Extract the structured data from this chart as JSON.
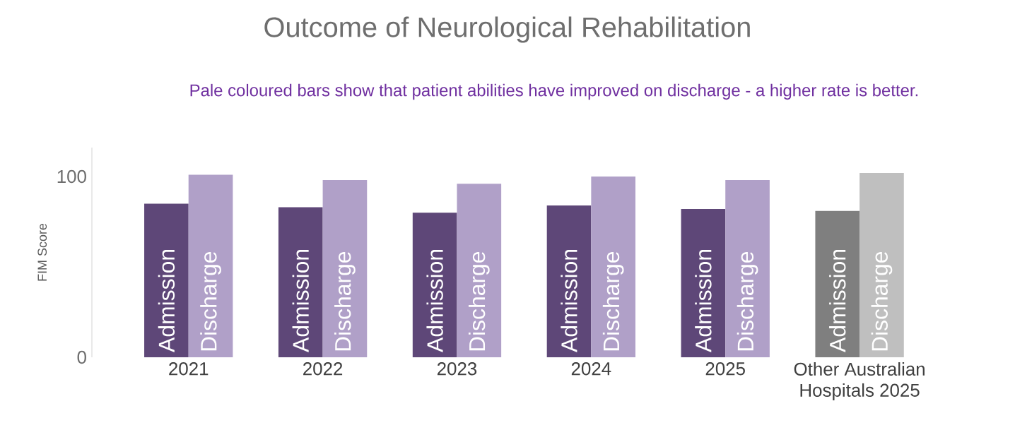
{
  "chart_data": {
    "type": "bar",
    "title": "Outcome of Neurological Rehabilitation",
    "annotations": [
      "Pale coloured bars show that patient abilities have improved on discharge - a higher rate is better."
    ],
    "ylabel": "FIM Score",
    "categories": [
      "2021",
      "2022",
      "2023",
      "2024",
      "2025",
      "Other Australian Hospitals 2025"
    ],
    "series": [
      {
        "name": "Admission",
        "colors": [
          "#5e4778",
          "#5e4778",
          "#5e4778",
          "#5e4778",
          "#5e4778",
          "#7f7f7f"
        ],
        "values": [
          85,
          83,
          80,
          84,
          82,
          81
        ]
      },
      {
        "name": "Discharge",
        "colors": [
          "#b0a0c8",
          "#b0a0c8",
          "#b0a0c8",
          "#b0a0c8",
          "#b0a0c8",
          "#bfbfbf"
        ],
        "values": [
          101,
          98,
          96,
          100,
          98,
          102
        ]
      }
    ],
    "ylim": [
      0,
      116
    ],
    "yticks": [
      0,
      100
    ]
  }
}
